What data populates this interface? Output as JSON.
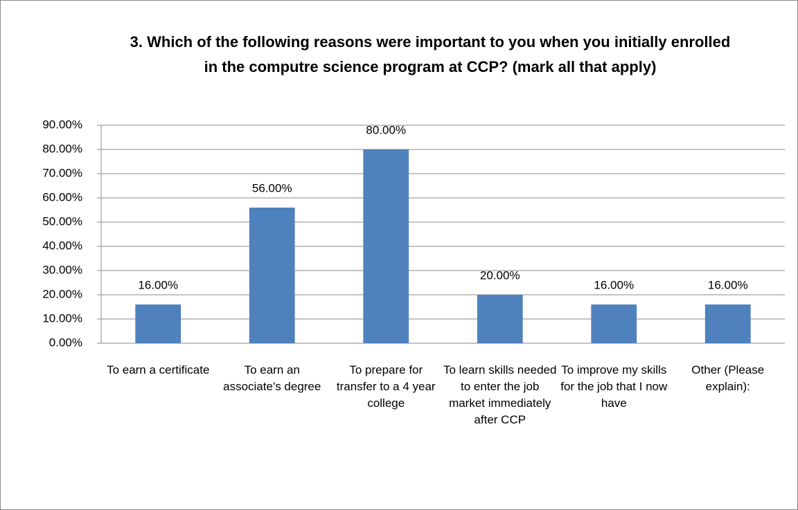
{
  "chart_data": {
    "type": "bar",
    "title": "3. Which of the following reasons were important  to you when you initially enrolled in the computre science program at CCP? (mark all that apply)",
    "categories": [
      "To earn a certificate",
      "To earn an associate's degree",
      "To prepare for transfer to a 4 year college",
      "To learn skills needed to enter the job market immediately after CCP",
      "To improve my skills for the job that I now have",
      "Other (Please explain):"
    ],
    "values": [
      16,
      56,
      80,
      20,
      16,
      16
    ],
    "value_labels": [
      "16.00%",
      "56.00%",
      "80.00%",
      "20.00%",
      "16.00%",
      "16.00%"
    ],
    "color": "#4f81bd",
    "ylim": [
      0,
      90
    ],
    "yticks": [
      {
        "value": 0,
        "label": "0.00%"
      },
      {
        "value": 10,
        "label": "10.00%"
      },
      {
        "value": 20,
        "label": "20.00%"
      },
      {
        "value": 30,
        "label": "30.00%"
      },
      {
        "value": 40,
        "label": "40.00%"
      },
      {
        "value": 50,
        "label": "50.00%"
      },
      {
        "value": 60,
        "label": "60.00%"
      },
      {
        "value": 70,
        "label": "70.00%"
      },
      {
        "value": 80,
        "label": "80.00%"
      },
      {
        "value": 90,
        "label": "90.00%"
      }
    ],
    "grid": true
  }
}
